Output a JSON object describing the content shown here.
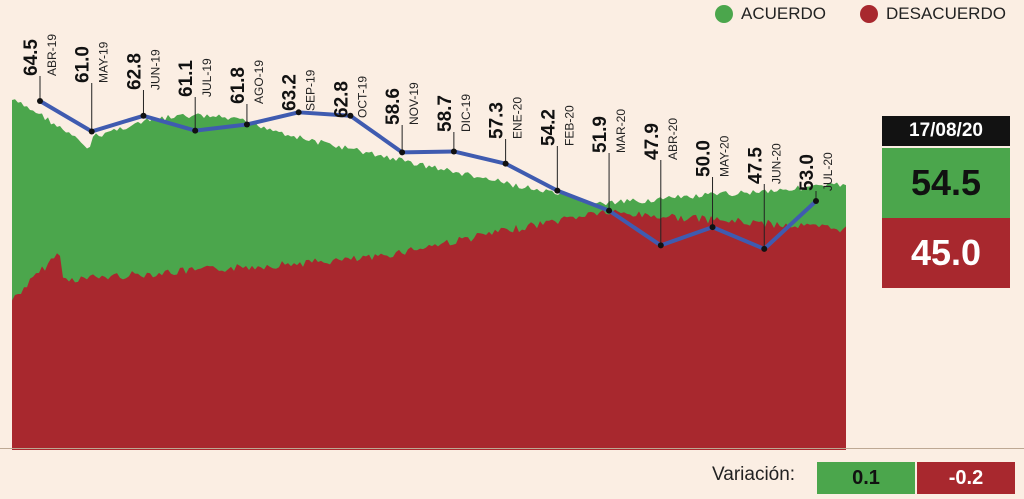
{
  "legend": {
    "agree": {
      "label": "ACUERDO",
      "color": "#4ba64c"
    },
    "disagree": {
      "label": "DESACUERDO",
      "color": "#a8282e"
    }
  },
  "latest": {
    "date": "17/08/20",
    "agree": "54.5",
    "disagree": "45.0"
  },
  "variation": {
    "label": "Variación:",
    "agree": "0.1",
    "disagree": "-0.2"
  },
  "chart_data": {
    "type": "line",
    "categories": [
      "ABR-19",
      "MAY-19",
      "JUN-19",
      "JUL-19",
      "AGO-19",
      "SEP-19",
      "OCT-19",
      "NOV-19",
      "DIC-19",
      "ENE-20",
      "FEB-20",
      "MAR-20",
      "ABR-20",
      "MAY-20",
      "JUN-20",
      "JUL-20"
    ],
    "series": [
      {
        "values": [
          64.5,
          61.0,
          62.8,
          61.1,
          61.8,
          63.2,
          62.8,
          58.6,
          58.7,
          57.3,
          54.2,
          51.9,
          47.9,
          50.0,
          47.5,
          53.0
        ],
        "color": "#3f5bb0"
      }
    ],
    "background_areas": [
      {
        "name": "ACUERDO",
        "color": "#4ba64c",
        "approx_start": 64,
        "approx_end": 54.5
      },
      {
        "name": "DESACUERDO",
        "color": "#a8282e",
        "approx_start": 35,
        "approx_end": 45.0
      }
    ]
  }
}
